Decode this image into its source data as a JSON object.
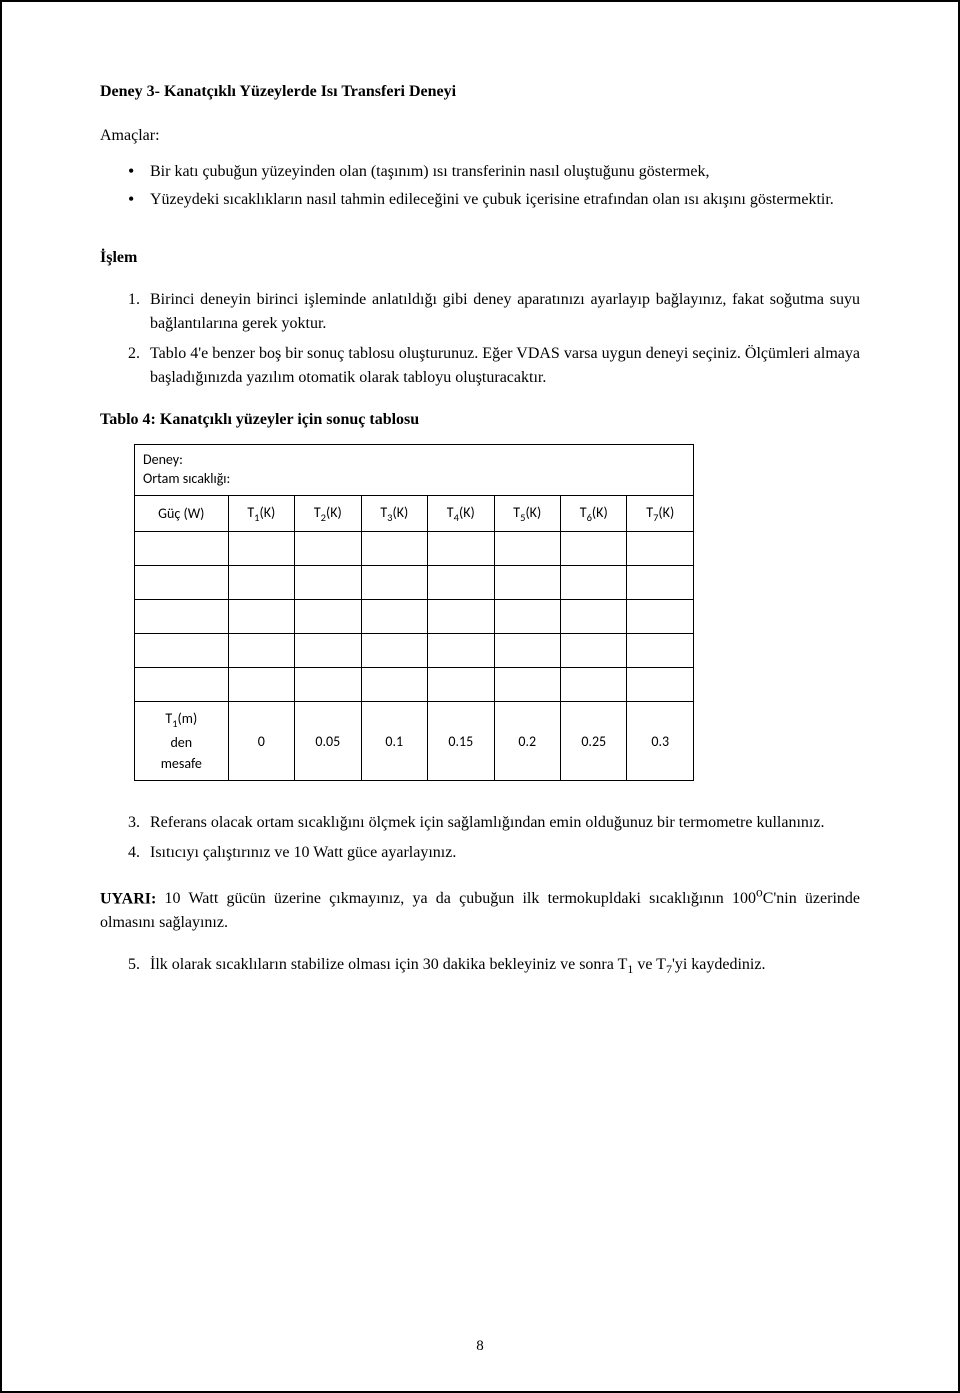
{
  "title": "Deney 3- Kanatçıklı Yüzeylerde Isı Transferi Deneyi",
  "objectives_label": "Amaçlar:",
  "objectives": [
    "Bir katı çubuğun yüzeyinden olan (taşınım) ısı transferinin nasıl oluştuğunu göstermek,",
    "Yüzeydeki sıcaklıkların nasıl tahmin edileceğini ve çubuk içerisine etrafından olan ısı akışını göstermektir."
  ],
  "procedure_label": "İşlem",
  "steps_a": [
    "Birinci deneyin birinci işleminde anlatıldığı gibi deney aparatınızı ayarlayıp bağlayınız, fakat soğutma suyu bağlantılarına gerek yoktur.",
    "Tablo 4'e benzer boş bir sonuç tablosu oluşturunuz. Eğer VDAS varsa uygun deneyi seçiniz. Ölçümleri almaya başladığınızda yazılım otomatik olarak tabloyu oluşturacaktır."
  ],
  "table_caption": "Tablo 4: Kanatçıklı yüzeyler için sonuç tablosu",
  "table": {
    "top_line1": "Deney:",
    "top_line2": "Ortam sıcaklığı:",
    "left_header": "Güç (W)",
    "columns": [
      "T₁(K)",
      "T₂(K)",
      "T₃(K)",
      "T₄(K)",
      "T₅(K)",
      "T₆(K)",
      "T₇(K)"
    ],
    "blank_rows": 5,
    "footer_left": "T₁(m) den mesafe",
    "footer_vals": [
      "0",
      "0.05",
      "0.1",
      "0.15",
      "0.2",
      "0.25",
      "0.3"
    ]
  },
  "steps_b": [
    "Referans olacak ortam sıcaklığını ölçmek için sağlamlığından emin olduğunuz bir termometre kullanınız.",
    "Isıtıcıyı çalıştırınız ve 10 Watt güce ayarlayınız."
  ],
  "warning_label": "UYARI:",
  "warning_text": " 10 Watt gücün üzerine çıkmayınız, ya da çubuğun ilk termokupldaki sıcaklığının 100°C'nin üzerinde olmasını sağlayınız.",
  "steps_c": [
    "İlk olarak sıcaklıların stabilize olması için 30 dakika bekleyiniz ve sonra T₁ ve T₇'yi kaydediniz."
  ],
  "page_number": "8"
}
